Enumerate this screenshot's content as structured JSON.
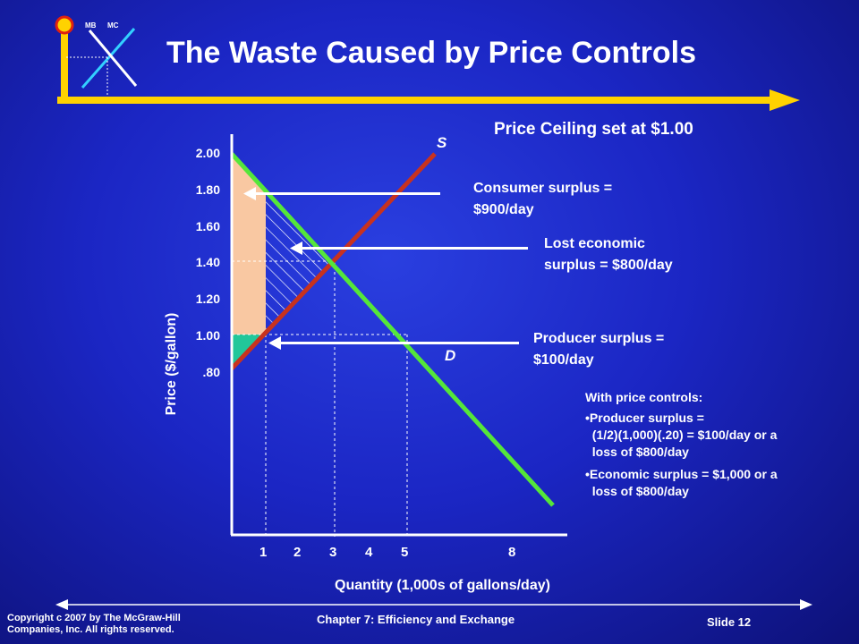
{
  "logo": {
    "mb_label": "MB",
    "mc_label": "MC"
  },
  "title": "The Waste Caused by Price Controls",
  "subtitle": "Price Ceiling set at $1.00",
  "chart_data": {
    "type": "line",
    "ylabel": "Price ($/gallon)",
    "xlabel": "Quantity (1,000s of gallons/day)",
    "y_ticks": [
      "2.00",
      "1.80",
      "1.60",
      "1.40",
      "1.20",
      "1.00",
      ".80"
    ],
    "x_ticks": [
      "1",
      "2",
      "3",
      "4",
      "5",
      "8"
    ],
    "curves": [
      {
        "label": "S",
        "color": "#c8321e",
        "points": [
          [
            0,
            0.8
          ],
          [
            7,
            2.2
          ]
        ]
      },
      {
        "label": "D",
        "color": "#55e63a",
        "points": [
          [
            0,
            2.0
          ],
          [
            9.2,
            0.16
          ]
        ]
      }
    ],
    "price_ceiling": 1.0,
    "equilibrium": {
      "quantity": 3,
      "price": 1.4
    },
    "colors": {
      "consumer_surplus": "#f9c8a2",
      "producer_surplus": "#22c79a",
      "lost_surplus_hatch": "#ffffff",
      "axes": "#ffffff",
      "title_bar": "#ffd200"
    }
  },
  "annotations": {
    "consumer_surplus": [
      "Consumer surplus =",
      "$900/day"
    ],
    "lost_surplus": [
      "Lost economic",
      "surplus  = $800/day"
    ],
    "producer_surplus": [
      "Producer surplus =",
      "$100/day"
    ]
  },
  "notes": {
    "heading": "With price controls:",
    "lines": [
      "•Producer surplus =",
      "  (1/2)(1,000)(.20) = $100/day or a",
      "  loss of $800/day",
      "•Economic surplus = $1,000 or a",
      "  loss of $800/day"
    ]
  },
  "footer": {
    "copyright": [
      "Copyright  c 2007 by The McGraw-Hill",
      "Companies, Inc.  All rights reserved."
    ],
    "chapter": "Chapter 7: Efficiency and Exchange",
    "slide": "Slide 12"
  }
}
